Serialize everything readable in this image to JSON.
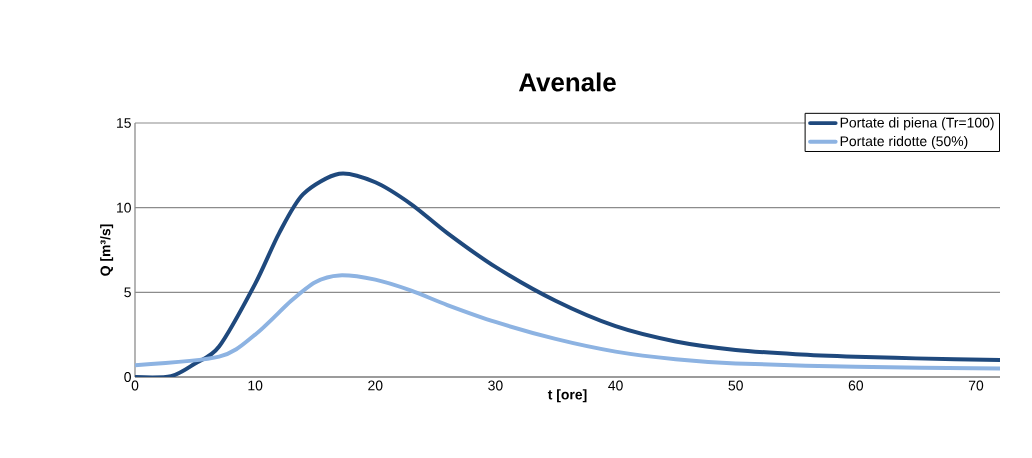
{
  "chart_data": {
    "type": "line",
    "title": "Avenale",
    "xlabel": "t [ore]",
    "ylabel": "Q [m³/s]",
    "xlim": [
      0,
      72
    ],
    "xticks": [
      0,
      10,
      20,
      30,
      40,
      50,
      60,
      70
    ],
    "ylim": [
      0,
      15
    ],
    "yticks": [
      0,
      5,
      10,
      15
    ],
    "grid": "y",
    "legend": "top right",
    "marker": "none",
    "line_style": "solid",
    "series": [
      {
        "name": "Portate di piena (Tr=100)",
        "color": "#1f497d",
        "x": [
          0,
          3,
          5,
          7,
          10,
          12,
          14,
          17,
          20,
          23,
          26,
          30,
          35,
          40,
          45,
          50,
          55,
          60,
          65,
          72
        ],
        "values": [
          0,
          0.05,
          0.8,
          1.8,
          5.5,
          8.5,
          10.8,
          12,
          11.5,
          10.2,
          8.5,
          6.5,
          4.5,
          3,
          2.1,
          1.6,
          1.35,
          1.2,
          1.1,
          1
        ]
      },
      {
        "name": "Portate ridotte (50%)",
        "color": "#8db3e2",
        "x": [
          0,
          7,
          10,
          13,
          15,
          17,
          20,
          23,
          26,
          30,
          35,
          40,
          45,
          50,
          60,
          72
        ],
        "values": [
          0.7,
          1.2,
          2.5,
          4.5,
          5.6,
          6,
          5.75,
          5.1,
          4.25,
          3.25,
          2.25,
          1.5,
          1.05,
          0.8,
          0.6,
          0.5
        ]
      }
    ]
  }
}
